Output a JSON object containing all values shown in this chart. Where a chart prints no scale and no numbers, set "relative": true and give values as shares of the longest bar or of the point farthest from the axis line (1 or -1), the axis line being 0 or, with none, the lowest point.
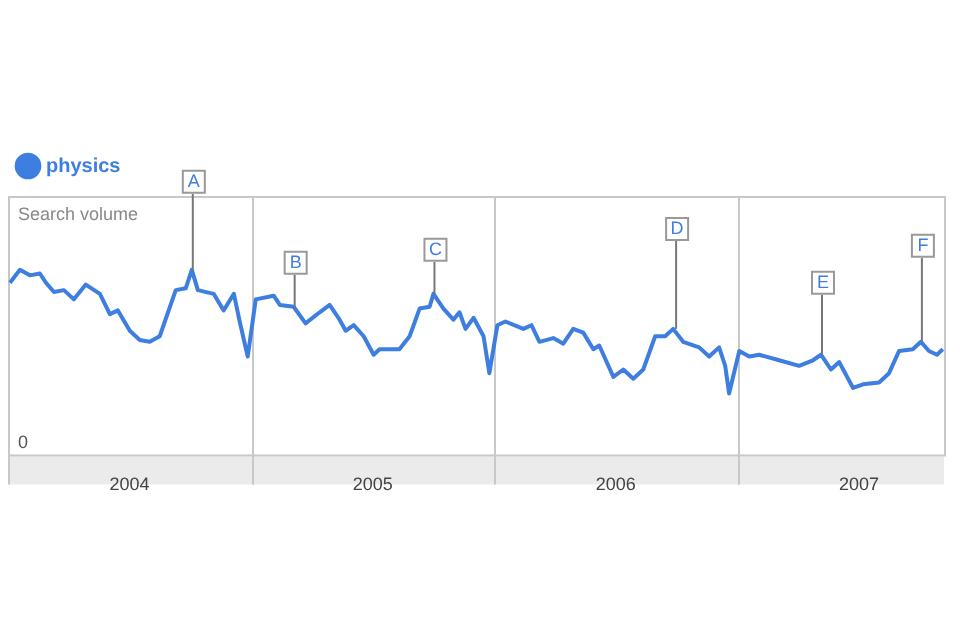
{
  "chart_data": {
    "type": "line",
    "relative": true,
    "ylabel": "Search volume",
    "legend": "top left",
    "grid": "x",
    "marker": "none",
    "line_style": "solid",
    "xlim": [
      2004,
      2007.85
    ],
    "xticks": [
      {
        "value": 2004,
        "label": null
      },
      {
        "value": 2004.5,
        "label": "2004"
      },
      {
        "value": 2005,
        "label": null
      },
      {
        "value": 2005.5,
        "label": "2005"
      },
      {
        "value": 2006,
        "label": null
      },
      {
        "value": 2006.5,
        "label": "2006"
      },
      {
        "value": 2007,
        "label": null
      },
      {
        "value": 2007.5,
        "label": "2007"
      }
    ],
    "annotations": [
      "0",
      {
        "text": "A",
        "x": 2004.756,
        "y": 1.0
      },
      {
        "text": "B",
        "x": 2005.175,
        "y": 0.8
      },
      {
        "text": "C",
        "x": 2005.75,
        "y": 0.87
      },
      {
        "text": "D",
        "x": 2006.744,
        "y": 0.68
      },
      {
        "text": "E",
        "x": 2007.344,
        "y": 0.54
      },
      {
        "text": "F",
        "x": 2007.755,
        "y": 0.61
      }
    ],
    "series": [
      {
        "name": "physics",
        "color": "#3d7ee0",
        "x": [
          2004.008,
          2004.049,
          2004.09,
          2004.131,
          2004.156,
          2004.189,
          2004.23,
          2004.271,
          2004.32,
          2004.378,
          2004.419,
          2004.452,
          2004.501,
          2004.542,
          2004.583,
          2004.624,
          2004.69,
          2004.731,
          2004.756,
          2004.781,
          2004.846,
          2004.887,
          2004.929,
          2004.953,
          2004.986,
          2005.019,
          2005.093,
          2005.118,
          2005.175,
          2005.224,
          2005.282,
          2005.323,
          2005.364,
          2005.389,
          2005.422,
          2005.463,
          2005.504,
          2005.528,
          2005.61,
          2005.652,
          2005.693,
          2005.734,
          2005.75,
          2005.791,
          2005.832,
          2005.857,
          2005.882,
          2005.915,
          2005.956,
          2005.98,
          2006.013,
          2006.046,
          2006.12,
          2006.153,
          2006.186,
          2006.243,
          2006.284,
          2006.325,
          2006.366,
          2006.408,
          2006.432,
          2006.49,
          2006.531,
          2006.572,
          2006.613,
          2006.662,
          2006.703,
          2006.736,
          2006.777,
          2006.843,
          2006.884,
          2006.925,
          2006.95,
          2006.966,
          2007.008,
          2007.049,
          2007.09,
          2007.172,
          2007.254,
          2007.311,
          2007.344,
          2007.385,
          2007.419,
          2007.476,
          2007.517,
          2007.583,
          2007.624,
          2007.665,
          2007.722,
          2007.755,
          2007.788,
          2007.821,
          2007.845
        ],
        "values": [
          0.93,
          1.0,
          0.97,
          0.98,
          0.93,
          0.88,
          0.89,
          0.84,
          0.92,
          0.87,
          0.76,
          0.78,
          0.67,
          0.62,
          0.61,
          0.64,
          0.89,
          0.9,
          1.0,
          0.89,
          0.87,
          0.78,
          0.87,
          0.72,
          0.53,
          0.84,
          0.86,
          0.81,
          0.8,
          0.71,
          0.77,
          0.81,
          0.73,
          0.67,
          0.7,
          0.64,
          0.54,
          0.57,
          0.57,
          0.64,
          0.79,
          0.8,
          0.87,
          0.79,
          0.73,
          0.77,
          0.68,
          0.74,
          0.64,
          0.44,
          0.7,
          0.72,
          0.68,
          0.7,
          0.61,
          0.63,
          0.6,
          0.68,
          0.66,
          0.57,
          0.59,
          0.42,
          0.46,
          0.41,
          0.46,
          0.64,
          0.64,
          0.68,
          0.61,
          0.58,
          0.53,
          0.58,
          0.48,
          0.33,
          0.56,
          0.53,
          0.54,
          0.51,
          0.48,
          0.51,
          0.54,
          0.46,
          0.5,
          0.36,
          0.38,
          0.39,
          0.44,
          0.56,
          0.57,
          0.61,
          0.56,
          0.54,
          0.57
        ]
      }
    ]
  }
}
